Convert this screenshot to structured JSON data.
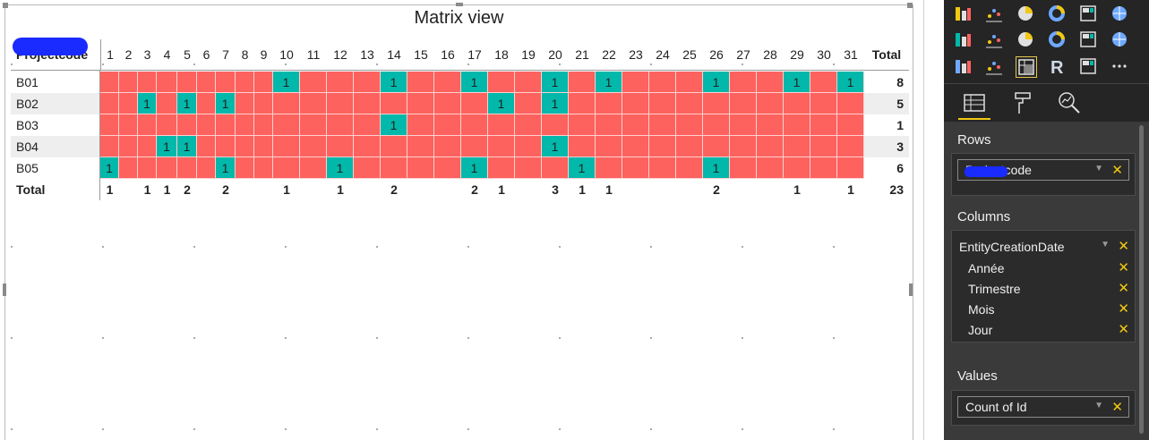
{
  "visual": {
    "title": "Matrix view"
  },
  "matrix": {
    "corner_label": "Projectcode",
    "day_columns": [
      "1",
      "2",
      "3",
      "4",
      "5",
      "6",
      "7",
      "8",
      "9",
      "10",
      "11",
      "12",
      "13",
      "14",
      "15",
      "16",
      "17",
      "18",
      "19",
      "20",
      "21",
      "22",
      "23",
      "24",
      "25",
      "26",
      "27",
      "28",
      "29",
      "30",
      "31"
    ],
    "total_header": "Total",
    "rows": [
      {
        "label": "B01",
        "ones": [
          10,
          14,
          17,
          20,
          22,
          26,
          29,
          31
        ],
        "total": "8"
      },
      {
        "label": "B02",
        "ones": [
          3,
          5,
          7,
          18,
          20
        ],
        "total": "5"
      },
      {
        "label": "B03",
        "ones": [
          14
        ],
        "total": "1"
      },
      {
        "label": "B04",
        "ones": [
          4,
          5,
          20
        ],
        "total": "3"
      },
      {
        "label": "B05",
        "ones": [
          1,
          7,
          12,
          17,
          21,
          26
        ],
        "total": "6"
      }
    ],
    "cell_value": "1",
    "total_row": {
      "label": "Total",
      "values": [
        "1",
        "",
        "1",
        "1",
        "2",
        "",
        "2",
        "",
        "",
        "1",
        "",
        "1",
        "",
        "2",
        "",
        "",
        "2",
        "1",
        "",
        "3",
        "1",
        "1",
        "",
        "",
        "",
        "2",
        "",
        "",
        "1",
        "",
        "1"
      ],
      "grand_total": "23"
    },
    "colors": {
      "empty": "#fd625e",
      "filled": "#01b8aa"
    }
  },
  "visualizations_pane": {
    "gallery": [
      "ribbon-chart-icon",
      "scatter-chart-icon",
      "pie-chart-icon",
      "donut-chart-icon",
      "treemap-icon",
      "globe-map-icon",
      "filled-map-icon",
      "funnel-icon",
      "gauge-icon",
      "card-icon",
      "multi-row-card-icon",
      "kpi-icon",
      "slicer-icon",
      "table-icon",
      "matrix-icon",
      "r-script-icon",
      "arcgis-map-icon",
      "more-visuals-icon"
    ],
    "selected": "matrix-icon",
    "tabs": [
      "fields-tab",
      "format-tab",
      "analytics-tab"
    ],
    "wells": {
      "rows": {
        "title": "Rows",
        "fields": [
          "Projectcode"
        ]
      },
      "columns": {
        "title": "Columns",
        "hierarchy": "EntityCreationDate",
        "levels": [
          "Année",
          "Trimestre",
          "Mois",
          "Jour"
        ]
      },
      "values": {
        "title": "Values",
        "fields": [
          "Count of Id"
        ]
      }
    },
    "accent": "#f2c811"
  }
}
